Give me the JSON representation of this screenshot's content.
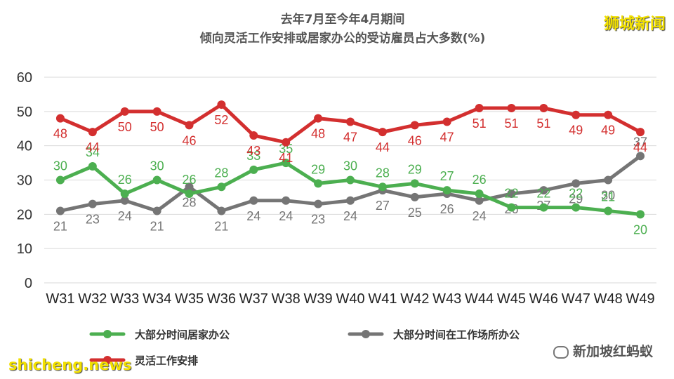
{
  "watermarks": {
    "top_right": "狮城新闻",
    "bottom_left": "shicheng.news",
    "bottom_right": "新加坡红蚂蚁"
  },
  "colors": {
    "green": "#4caf50",
    "gray": "#757575",
    "red": "#d32f2f",
    "grid": "#d9d9d9"
  },
  "chart_data": {
    "type": "line",
    "title": "去年7月至今年4月期间",
    "subtitle": "倾向灵活工作安排或居家办公的受访雇员占大多数(%)",
    "xlabel": "",
    "ylabel": "",
    "ylim": [
      0,
      60
    ],
    "yticks": [
      0,
      10,
      20,
      30,
      40,
      50,
      60
    ],
    "grid": true,
    "legend_position": "bottom",
    "categories": [
      "W31",
      "W32",
      "W33",
      "W34",
      "W35",
      "W36",
      "W37",
      "W38",
      "W39",
      "W40",
      "W41",
      "W42",
      "W43",
      "W44",
      "W45",
      "W46",
      "W47",
      "W48",
      "W49"
    ],
    "series": [
      {
        "name": "大部分时间居家办公",
        "color": "#4caf50",
        "values": [
          30,
          34,
          26,
          30,
          26,
          28,
          33,
          35,
          29,
          30,
          28,
          29,
          27,
          26,
          22,
          22,
          22,
          21,
          20
        ],
        "labels": [
          "30",
          "34",
          "26",
          "30",
          "26",
          "28",
          "33",
          "35",
          "29",
          "30",
          "28",
          "29",
          "27",
          "26",
          "22",
          "22",
          "22",
          "21",
          "20"
        ]
      },
      {
        "name": "大部分时间在工作场所办公",
        "color": "#757575",
        "values": [
          21,
          23,
          24,
          21,
          28,
          21,
          24,
          24,
          23,
          24,
          27,
          25,
          26,
          24,
          26,
          27,
          29,
          30,
          37
        ],
        "labels": [
          "21",
          "23",
          "24",
          "21",
          "28",
          "21",
          "24",
          "24",
          "23",
          "24",
          "27",
          "25",
          "26",
          "24",
          "26",
          "27",
          "29",
          "30",
          "37"
        ]
      },
      {
        "name": "灵活工作安排",
        "color": "#d32f2f",
        "values": [
          48,
          44,
          50,
          50,
          46,
          52,
          43,
          41,
          48,
          47,
          44,
          46,
          47,
          51,
          51,
          51,
          49,
          49,
          44
        ],
        "labels": [
          "48",
          "44",
          "50",
          "50",
          "46",
          "52",
          "43",
          "41",
          "48",
          "47",
          "44",
          "46",
          "47",
          "51",
          "51",
          "51",
          "49",
          "49",
          "44"
        ]
      }
    ]
  }
}
